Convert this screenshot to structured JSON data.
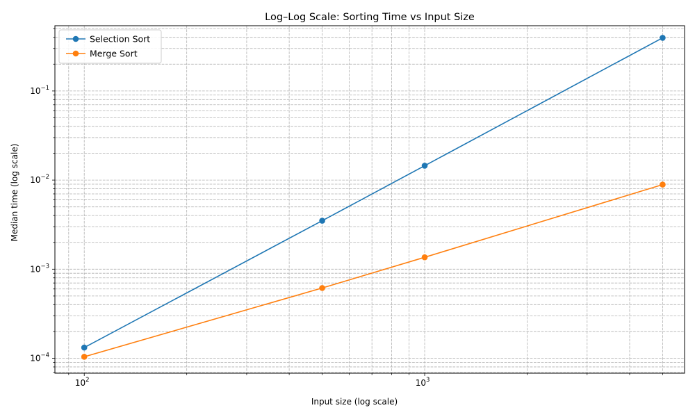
{
  "chart_data": {
    "type": "line",
    "title": "Log–Log Scale: Sorting Time vs Input Size",
    "xlabel": "Input size (log scale)",
    "ylabel": "Median time (log scale)",
    "xscale": "log",
    "yscale": "log",
    "xlim": [
      82,
      5800
    ],
    "ylim": [
      6.8e-05,
      0.54
    ],
    "x_ticks": [
      {
        "value": 100,
        "base": "10",
        "exp": "2"
      },
      {
        "value": 1000,
        "base": "10",
        "exp": "3"
      }
    ],
    "y_ticks": [
      {
        "value": 0.0001,
        "base": "10",
        "exp": "−4"
      },
      {
        "value": 0.001,
        "base": "10",
        "exp": "−3"
      },
      {
        "value": 0.01,
        "base": "10",
        "exp": "−2"
      },
      {
        "value": 0.1,
        "base": "10",
        "exp": "−1"
      }
    ],
    "grid": "both major and minor, dashed",
    "legend_position": "upper-left",
    "series": [
      {
        "name": "Selection Sort",
        "color": "#1f77b4",
        "x": [
          100,
          500,
          1000,
          5000
        ],
        "y": [
          0.000132,
          0.0035,
          0.0145,
          0.395
        ]
      },
      {
        "name": "Merge Sort",
        "color": "#ff7f0e",
        "x": [
          100,
          500,
          1000,
          5000
        ],
        "y": [
          0.000104,
          0.000615,
          0.00136,
          0.0089
        ]
      }
    ]
  }
}
